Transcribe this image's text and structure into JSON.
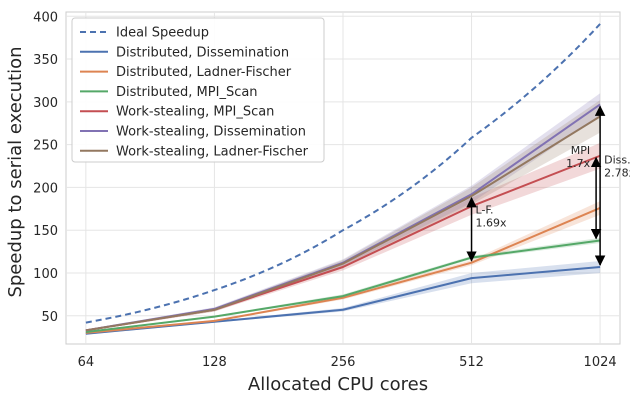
{
  "chart_data": {
    "type": "line",
    "xlabel": "Allocated CPU cores",
    "ylabel": "Speedup to serial execution",
    "x": [
      64,
      128,
      256,
      512,
      1024
    ],
    "x_tick_labels": [
      "64",
      "128",
      "256",
      "512",
      "1024"
    ],
    "x_scale": "log2",
    "xlim": [
      57.5,
      1140
    ],
    "ylim": [
      17,
      405
    ],
    "y_ticks": [
      50,
      100,
      150,
      200,
      250,
      300,
      350,
      400
    ],
    "y_tick_labels": [
      "50",
      "100",
      "150",
      "200",
      "250",
      "300",
      "350",
      "400"
    ],
    "grid": true,
    "legend_position": "top-left",
    "series": [
      {
        "name": "Ideal Speedup",
        "color": "#4c72b0",
        "dashed": true,
        "values": [
          42,
          80,
          150,
          258,
          391
        ]
      },
      {
        "name": "Distributed, Dissemination",
        "color": "#4c72b0",
        "values": [
          29,
          43,
          57,
          94,
          107
        ],
        "band_low": [
          28,
          42,
          55,
          88,
          100
        ],
        "band_high": [
          30,
          44,
          59,
          100,
          114
        ]
      },
      {
        "name": "Distributed, Ladner-Fischer",
        "color": "#dd8452",
        "values": [
          30,
          44,
          71,
          112,
          176
        ],
        "band_low": [
          29,
          43,
          69,
          109,
          168
        ],
        "band_high": [
          31,
          45,
          73,
          115,
          184
        ]
      },
      {
        "name": "Distributed, MPI_Scan",
        "color": "#55a868",
        "values": [
          31,
          49,
          73,
          118,
          138
        ],
        "band_low": [
          30,
          48,
          71,
          116,
          135
        ],
        "band_high": [
          32,
          50,
          75,
          120,
          141
        ]
      },
      {
        "name": "Work-stealing, MPI_Scan",
        "color": "#c44e52",
        "values": [
          33,
          57,
          107,
          178,
          237
        ],
        "band_low": [
          32,
          55,
          103,
          168,
          222
        ],
        "band_high": [
          34,
          59,
          111,
          188,
          252
        ]
      },
      {
        "name": "Work-stealing, Dissemination",
        "color": "#8172b3",
        "values": [
          33,
          58,
          112,
          192,
          297
        ],
        "band_low": [
          32,
          56,
          108,
          182,
          284
        ],
        "band_high": [
          34,
          60,
          116,
          202,
          310
        ]
      },
      {
        "name": "Work-stealing, Ladner-Fischer",
        "color": "#937860",
        "values": [
          33,
          57,
          111,
          190,
          283
        ],
        "band_low": [
          32,
          55,
          107,
          180,
          264
        ],
        "band_high": [
          34,
          59,
          115,
          200,
          302
        ]
      }
    ],
    "annotations": [
      {
        "text": "L-F.\n1.69x",
        "x": 512,
        "y_from": 112,
        "y_to": 190
      },
      {
        "text": "MPI\n1.7x",
        "x": 1024,
        "y_from": 138,
        "y_to": 237
      },
      {
        "text": "Diss.\n2.78x",
        "x": 1024,
        "y_from": 107,
        "y_to": 297
      }
    ]
  }
}
